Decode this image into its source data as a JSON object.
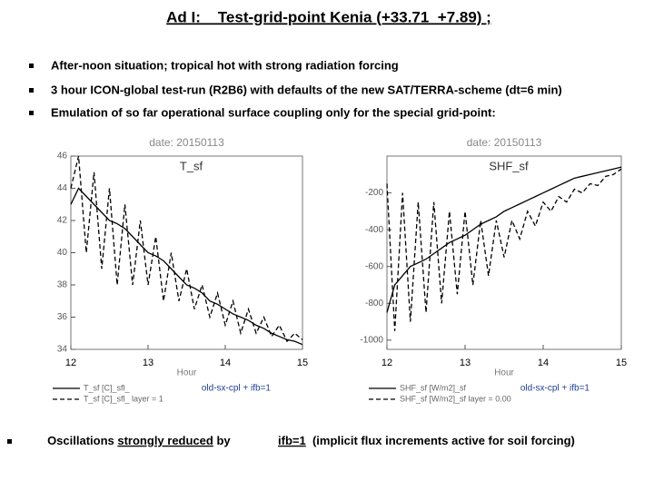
{
  "title": "Ad I:    Test-grid-point Kenia (+33.71_+7.89) ;",
  "bullets": [
    "After-noon situation; tropical hot with strong radiation forcing",
    "3 hour ICON-global test-run (R2B6) with defaults of the new SAT/TERRA-scheme (dt=6 min)",
    "Emulation of so far operational surface coupling only for the special grid-point:"
  ],
  "footer": {
    "parts": [
      "Oscillations ",
      "strongly reduced",
      " by",
      "ifb=1",
      "  (implicit flux increments active for soil forcing)"
    ]
  },
  "chart_data": [
    {
      "type": "line",
      "title": "T_sf",
      "subtitle": "date: 20150113",
      "xlabel": "Hour",
      "annotation": "old-sx-cpl + ifb=1",
      "x": [
        12.0,
        12.1,
        12.2,
        12.3,
        12.4,
        12.5,
        12.6,
        12.7,
        12.8,
        12.9,
        13.0,
        13.1,
        13.2,
        13.3,
        13.4,
        13.5,
        13.6,
        13.7,
        13.8,
        13.9,
        14.0,
        14.1,
        14.2,
        14.3,
        14.4,
        14.5,
        14.6,
        14.7,
        14.8,
        14.9,
        15.0
      ],
      "xlim": [
        12,
        15
      ],
      "xticks": [
        12,
        13,
        14,
        15
      ],
      "ylim": [
        34,
        46
      ],
      "yticks": [
        34,
        36,
        38,
        40,
        42,
        44,
        46
      ],
      "series": [
        {
          "name": "T_sf [C]_sfl_",
          "color": "#000000",
          "dashed": false,
          "values": [
            43,
            44,
            43.5,
            43,
            42.5,
            42,
            41.8,
            41.5,
            41,
            40.5,
            40,
            39.8,
            39.5,
            39,
            38.5,
            38,
            37.8,
            37.5,
            37,
            36.8,
            36.5,
            36.2,
            36,
            35.8,
            35.5,
            35.3,
            35,
            34.8,
            34.6,
            34.5,
            34.3
          ]
        },
        {
          "name": "T_sf [C]_sfl_ layer = 1",
          "color": "#000000",
          "dashed": true,
          "values": [
            44,
            46,
            40,
            45,
            39,
            44,
            38,
            43,
            38,
            42,
            38,
            41,
            37,
            40,
            37,
            39,
            36.5,
            38,
            36,
            37.5,
            35.5,
            37,
            35,
            36.5,
            35,
            36,
            34.8,
            35.5,
            34.5,
            35,
            34.6
          ]
        }
      ]
    },
    {
      "type": "line",
      "title": "SHF_sf",
      "subtitle": "date: 20150113",
      "xlabel": "Hour",
      "annotation": "old-sx-cpl + ifb=1",
      "x": [
        12.0,
        12.1,
        12.2,
        12.3,
        12.4,
        12.5,
        12.6,
        12.7,
        12.8,
        12.9,
        13.0,
        13.1,
        13.2,
        13.3,
        13.4,
        13.5,
        13.6,
        13.7,
        13.8,
        13.9,
        14.0,
        14.1,
        14.2,
        14.3,
        14.4,
        14.5,
        14.6,
        14.7,
        14.8,
        14.9,
        15.0
      ],
      "xlim": [
        12,
        15
      ],
      "xticks": [
        12,
        13,
        14,
        15
      ],
      "ylim": [
        -1050,
        0
      ],
      "yticks": [
        -1000,
        -800,
        -600,
        -400,
        -200
      ],
      "series": [
        {
          "name": "SHF_sf [W/m2]_sf",
          "color": "#000000",
          "dashed": false,
          "values": [
            -850,
            -700,
            -650,
            -600,
            -580,
            -560,
            -530,
            -500,
            -470,
            -450,
            -430,
            -400,
            -370,
            -350,
            -330,
            -300,
            -280,
            -260,
            -240,
            -220,
            -200,
            -180,
            -160,
            -140,
            -120,
            -110,
            -100,
            -90,
            -80,
            -70,
            -60
          ]
        },
        {
          "name": "SHF_sf [W/m2]_sf layer = 0.00",
          "color": "#000000",
          "dashed": true,
          "values": [
            -150,
            -950,
            -200,
            -900,
            -250,
            -850,
            -250,
            -800,
            -300,
            -750,
            -300,
            -700,
            -350,
            -650,
            -350,
            -550,
            -350,
            -450,
            -300,
            -380,
            -250,
            -300,
            -220,
            -250,
            -180,
            -200,
            -150,
            -160,
            -110,
            -100,
            -70
          ]
        }
      ]
    }
  ]
}
